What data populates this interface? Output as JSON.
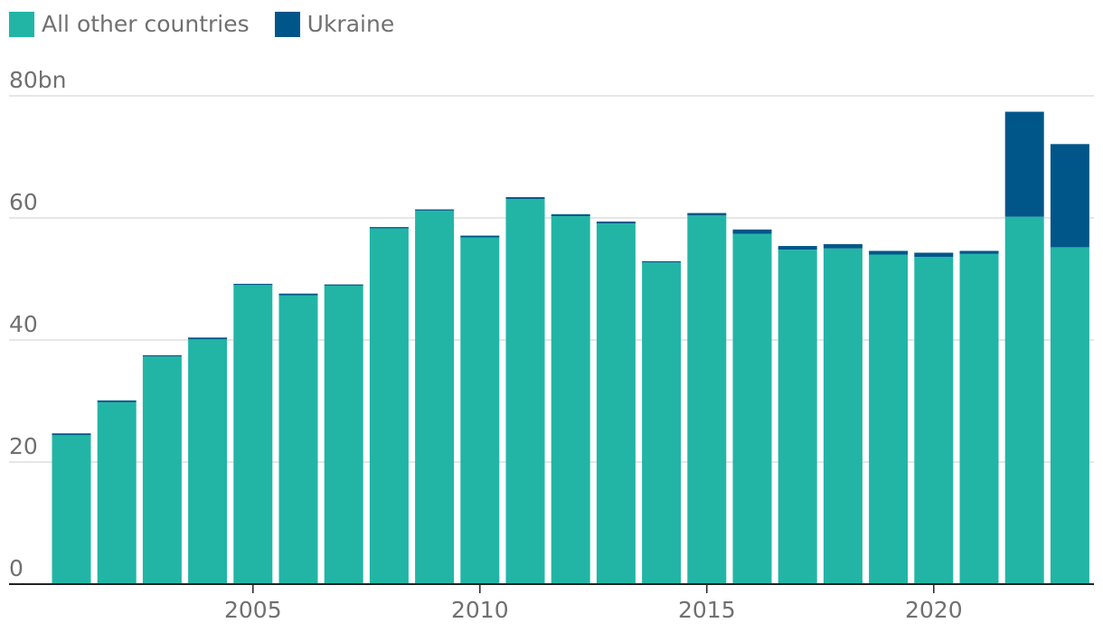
{
  "legend": [
    {
      "label": "All other countries",
      "color": "#22b5a6"
    },
    {
      "label": "Ukraine",
      "color": "#005689"
    }
  ],
  "chart_data": {
    "type": "bar",
    "stacked": true,
    "title": "",
    "xlabel": "",
    "ylabel": "",
    "ylim": [
      0,
      80
    ],
    "y_ticks": [
      {
        "value": 0,
        "label": "0"
      },
      {
        "value": 20,
        "label": "20"
      },
      {
        "value": 40,
        "label": "40"
      },
      {
        "value": 60,
        "label": "60"
      },
      {
        "value": 80,
        "label": "80bn"
      }
    ],
    "x_tick_labels": [
      {
        "value": 2005,
        "label": "2005"
      },
      {
        "value": 2010,
        "label": "2010"
      },
      {
        "value": 2015,
        "label": "2015"
      },
      {
        "value": 2020,
        "label": "2020"
      }
    ],
    "grid": true,
    "legend_position": "top-left",
    "categories": [
      2001,
      2002,
      2003,
      2004,
      2005,
      2006,
      2007,
      2008,
      2009,
      2010,
      2011,
      2012,
      2013,
      2014,
      2015,
      2016,
      2017,
      2018,
      2019,
      2020,
      2021,
      2022,
      2023
    ],
    "series": [
      {
        "name": "All other countries",
        "color": "#22b5a6",
        "values": [
          24.4,
          29.8,
          37.3,
          40.1,
          49.0,
          47.3,
          48.9,
          58.3,
          61.2,
          56.8,
          63.1,
          60.3,
          59.1,
          52.7,
          60.4,
          57.4,
          54.8,
          55.0,
          54.0,
          53.6,
          54.1,
          60.2,
          55.2
        ]
      },
      {
        "name": "Ukraine",
        "color": "#005689",
        "values": [
          0.3,
          0.3,
          0.2,
          0.3,
          0.2,
          0.3,
          0.2,
          0.2,
          0.2,
          0.3,
          0.3,
          0.3,
          0.3,
          0.2,
          0.4,
          0.7,
          0.6,
          0.7,
          0.6,
          0.7,
          0.5,
          17.2,
          16.9
        ]
      }
    ]
  }
}
